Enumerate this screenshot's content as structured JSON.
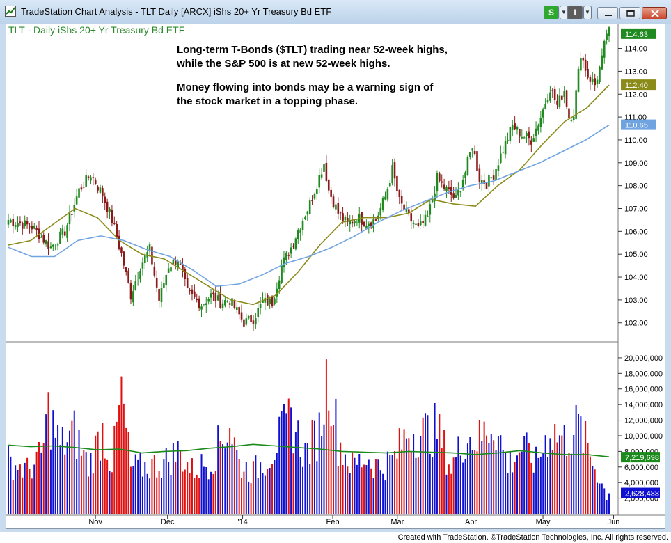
{
  "window": {
    "title": "TradeStation Chart Analysis - TLT Daily [ARCX] iShs 20+ Yr Treasury Bd ETF",
    "s_button_label": "S",
    "i_button_label": "I",
    "app_icon": "chart-app-icon",
    "minimize_icon": "minimize-icon",
    "maximize_icon": "maximize-icon",
    "close_icon": "close-icon"
  },
  "footer": {
    "text": "Created with TradeStation. ©TradeStation Technologies, Inc. All rights reserved."
  },
  "colors": {
    "up_candle": "#1f8a1f",
    "down_candle": "#8a1a1a",
    "ma_short": "#8b8b1a",
    "ma_long": "#6fa4e0",
    "vol_up": "#1010d0",
    "vol_down": "#e01010",
    "vol_avg": "#1a8a1a",
    "title_green": "#2a8a2a"
  },
  "chart_data": [
    {
      "type": "candlestick",
      "title": "TLT - Daily  iShs 20+ Yr Treasury Bd ETF",
      "annotation_lines": [
        "Long-term T-Bonds ($TLT) trading near 52-week highs,",
        "while the S&P 500 is at new 52-week highs.",
        "Money flowing into bonds may be a warning sign of",
        "the stock market in a topping phase."
      ],
      "x_tick_labels": [
        "Nov",
        "Dec",
        "'14",
        "Feb",
        "Mar",
        "Apr",
        "May",
        "Jun"
      ],
      "y_ticks": [
        102.0,
        103.0,
        104.0,
        105.0,
        106.0,
        107.0,
        108.0,
        109.0,
        110.0,
        111.0,
        112.0,
        113.0,
        114.0
      ],
      "y_tick_labels": [
        "102.00",
        "103.00",
        "104.00",
        "105.00",
        "106.00",
        "107.00",
        "108.00",
        "109.00",
        "110.00",
        "111.00",
        "112.00",
        "113.00",
        "114.00"
      ],
      "ylim": [
        101.2,
        114.9
      ],
      "last_value_tags": [
        {
          "text": "114.63",
          "value": 114.63,
          "series": "price"
        },
        {
          "text": "112.40",
          "value": 112.4,
          "series": "ma_short"
        },
        {
          "text": "110.65",
          "value": 110.65,
          "series": "ma_long"
        }
      ],
      "ohlc_key_points": [
        [
          0,
          106.5
        ],
        [
          10,
          106.2
        ],
        [
          18,
          105.3
        ],
        [
          24,
          106.0
        ],
        [
          30,
          107.8
        ],
        [
          35,
          108.5
        ],
        [
          40,
          107.6
        ],
        [
          44,
          106.5
        ],
        [
          48,
          105.0
        ],
        [
          52,
          103.2
        ],
        [
          56,
          104.5
        ],
        [
          60,
          105.2
        ],
        [
          64,
          103.0
        ],
        [
          68,
          104.5
        ],
        [
          72,
          104.8
        ],
        [
          76,
          103.3
        ],
        [
          82,
          102.8
        ],
        [
          86,
          103.2
        ],
        [
          90,
          102.9
        ],
        [
          94,
          103.0
        ],
        [
          100,
          102.0
        ],
        [
          104,
          102.2
        ],
        [
          108,
          102.9
        ],
        [
          112,
          102.9
        ],
        [
          116,
          104.5
        ],
        [
          120,
          105.3
        ],
        [
          124,
          106.3
        ],
        [
          128,
          107.2
        ],
        [
          132,
          108.4
        ],
        [
          134,
          109.0
        ],
        [
          136,
          107.8
        ],
        [
          140,
          106.8
        ],
        [
          144,
          106.3
        ],
        [
          148,
          106.6
        ],
        [
          152,
          106.4
        ],
        [
          156,
          106.5
        ],
        [
          160,
          107.5
        ],
        [
          163,
          108.7
        ],
        [
          166,
          107.3
        ],
        [
          170,
          106.6
        ],
        [
          174,
          106.1
        ],
        [
          178,
          106.6
        ],
        [
          182,
          108.3
        ],
        [
          186,
          107.8
        ],
        [
          190,
          107.4
        ],
        [
          194,
          108.6
        ],
        [
          197,
          109.8
        ],
        [
          200,
          108.3
        ],
        [
          203,
          108.1
        ],
        [
          206,
          108.5
        ],
        [
          210,
          109.6
        ],
        [
          214,
          110.6
        ],
        [
          218,
          110.2
        ],
        [
          222,
          110.0
        ],
        [
          226,
          111.0
        ],
        [
          230,
          112.3
        ],
        [
          233,
          111.5
        ],
        [
          236,
          112.2
        ],
        [
          238,
          111.0
        ],
        [
          240,
          111.2
        ],
        [
          243,
          113.8
        ],
        [
          246,
          112.8
        ],
        [
          249,
          112.4
        ],
        [
          252,
          113.5
        ],
        [
          254,
          114.7
        ]
      ],
      "n_days": 256,
      "series": [
        {
          "name": "ma_short",
          "values": [
            105.4,
            105.6,
            106.3,
            107.0,
            106.6,
            105.6,
            105.0,
            104.8,
            104.2,
            103.6,
            103.0,
            102.8,
            103.2,
            104.2,
            105.4,
            106.4,
            106.6,
            106.6,
            106.8,
            107.4,
            107.2,
            107.1,
            108.0,
            108.7,
            109.8,
            110.8,
            111.4,
            112.4
          ]
        },
        {
          "name": "ma_long",
          "values": [
            105.3,
            104.9,
            104.9,
            105.6,
            105.8,
            105.6,
            105.2,
            104.9,
            104.3,
            103.6,
            103.7,
            104.1,
            104.6,
            104.9,
            105.3,
            105.8,
            106.4,
            106.9,
            107.3,
            107.7,
            108.0,
            108.2,
            108.6,
            109.0,
            109.5,
            110.0,
            110.65
          ]
        }
      ]
    },
    {
      "type": "bar",
      "title": "",
      "y_ticks": [
        2000000,
        4000000,
        6000000,
        8000000,
        10000000,
        12000000,
        14000000,
        16000000,
        18000000,
        20000000
      ],
      "y_tick_labels": [
        "2,000,000",
        "4,000,000",
        "6,000,000",
        "8,000,000",
        "10,000,000",
        "12,000,000",
        "14,000,000",
        "16,000,000",
        "18,000,000",
        "20,000,000"
      ],
      "ylim": [
        0,
        21600000
      ],
      "last_value_tags": [
        {
          "text": "7,219,698",
          "value": 7219698,
          "series": "vol_avg"
        },
        {
          "text": "2,628,488",
          "value": 2628488,
          "series": "volume"
        }
      ],
      "volume_key_points": [
        [
          0,
          7.5
        ],
        [
          8,
          6.2
        ],
        [
          14,
          8.1
        ],
        [
          17,
          14.5
        ],
        [
          22,
          9.5
        ],
        [
          28,
          11.5
        ],
        [
          34,
          6.8
        ],
        [
          40,
          11.8
        ],
        [
          44,
          7.0
        ],
        [
          48,
          16.8
        ],
        [
          52,
          6.5
        ],
        [
          60,
          6.8
        ],
        [
          66,
          7.2
        ],
        [
          72,
          8.8
        ],
        [
          78,
          6.2
        ],
        [
          86,
          7.5
        ],
        [
          94,
          12.9
        ],
        [
          98,
          7.0
        ],
        [
          104,
          6.0
        ],
        [
          110,
          8.0
        ],
        [
          120,
          13.4
        ],
        [
          126,
          8.5
        ],
        [
          132,
          11.8
        ],
        [
          136,
          20.8
        ],
        [
          140,
          10.2
        ],
        [
          146,
          6.8
        ],
        [
          152,
          8.0
        ],
        [
          158,
          6.5
        ],
        [
          164,
          8.0
        ],
        [
          170,
          12.0
        ],
        [
          176,
          11.5
        ],
        [
          182,
          12.0
        ],
        [
          188,
          6.5
        ],
        [
          194,
          11.0
        ],
        [
          200,
          10.5
        ],
        [
          206,
          13.2
        ],
        [
          212,
          7.0
        ],
        [
          218,
          9.5
        ],
        [
          224,
          7.2
        ],
        [
          230,
          12.0
        ],
        [
          236,
          10.5
        ],
        [
          242,
          12.5
        ],
        [
          248,
          7.5
        ],
        [
          254,
          2.63
        ]
      ],
      "series": [
        {
          "name": "vol_avg",
          "values": [
            8.8,
            8.6,
            8.7,
            8.5,
            8.2,
            8.3,
            7.8,
            8.0,
            8.1,
            8.4,
            8.6,
            8.9,
            8.7,
            8.5,
            8.3,
            8.0,
            7.9,
            7.8,
            8.0,
            7.9,
            7.8,
            7.6,
            7.8,
            8.1,
            7.8,
            7.6,
            7.6,
            7.3
          ]
        }
      ]
    }
  ]
}
